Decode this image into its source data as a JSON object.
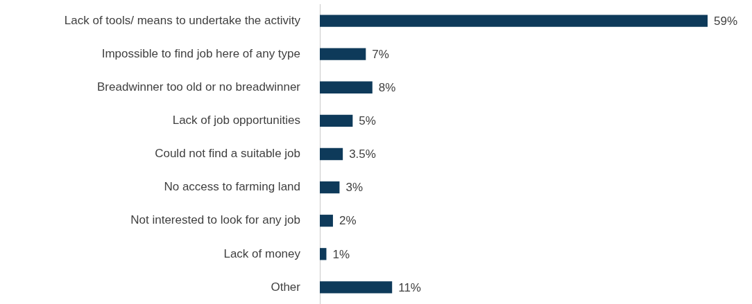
{
  "chart_data": {
    "type": "bar",
    "orientation": "horizontal",
    "categories": [
      "Lack of tools/ means to undertake the activity",
      "Impossible to find job here of any type",
      "Breadwinner too old or no breadwinner",
      "Lack of job opportunities",
      "Could not find a suitable job",
      "No access to farming land",
      "Not interested to look for any job",
      "Lack of money",
      "Other"
    ],
    "values": [
      59,
      7,
      8,
      5,
      3.5,
      3,
      2,
      1,
      11
    ],
    "value_labels": [
      "59%",
      "7%",
      "8%",
      "5%",
      "3.5%",
      "3%",
      "2%",
      "1%",
      "11%"
    ],
    "color": "#0e3a5a",
    "legend": false
  }
}
